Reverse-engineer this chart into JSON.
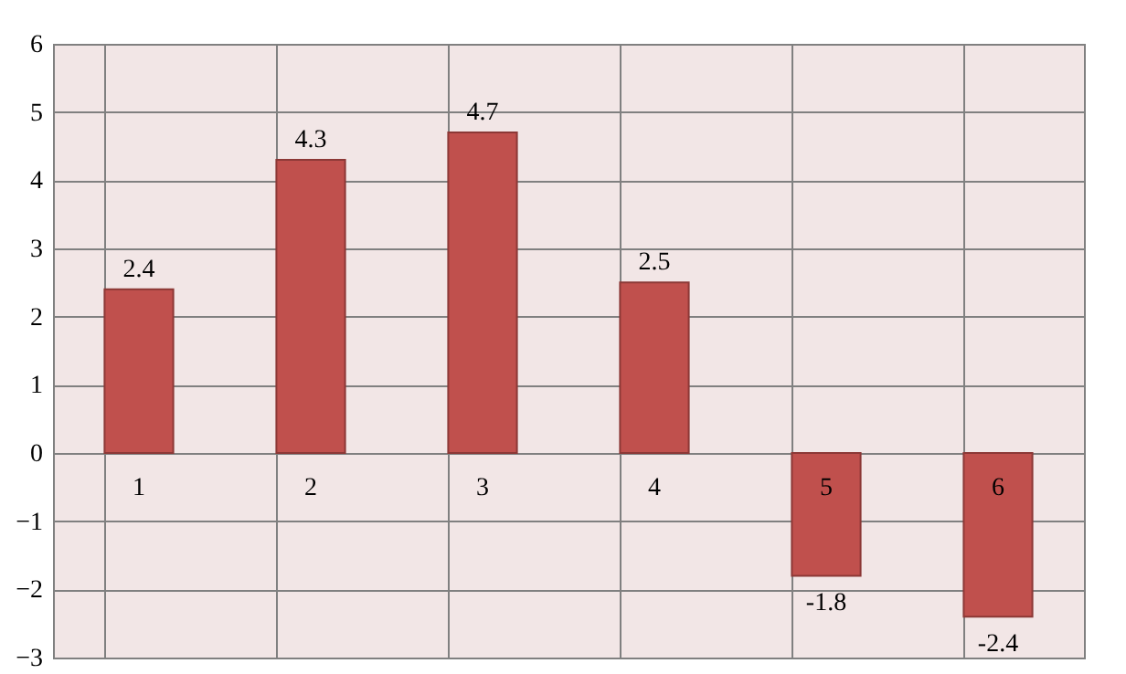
{
  "chart_data": {
    "type": "bar",
    "categories": [
      "1",
      "2",
      "3",
      "4",
      "5",
      "6"
    ],
    "values": [
      2.4,
      4.3,
      4.7,
      2.5,
      -1.8,
      -2.4
    ],
    "color": "#c0504d",
    "ylim": [
      -3,
      6
    ],
    "yticks": [
      -3,
      -2,
      -1,
      0,
      1,
      2,
      3,
      4,
      5,
      6
    ],
    "grid": true,
    "data_labels": true
  }
}
